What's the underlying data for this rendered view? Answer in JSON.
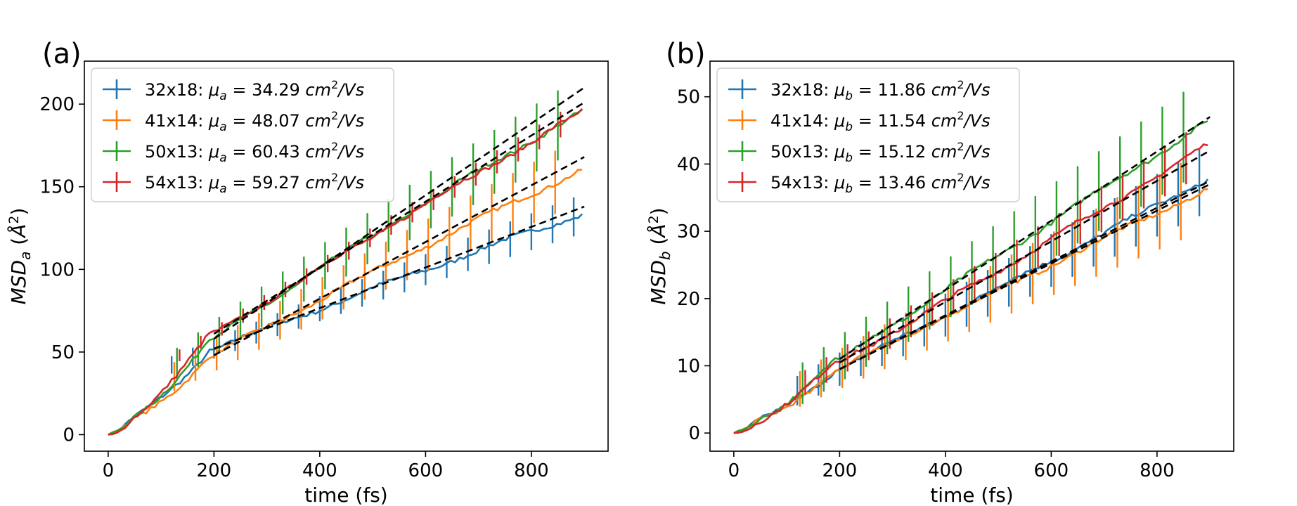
{
  "figure": {
    "panel_a_label": "(a)",
    "panel_b_label": "(b)"
  },
  "chart_data": [
    {
      "type": "line",
      "panel": "(a)",
      "xlabel": "time (fs)",
      "ylabel": "MSD_a (Å²)",
      "ylabel_parts": {
        "main": "MSD",
        "sub": "a",
        "unit_open": " (",
        "unit_sym": "Å",
        "unit_sup": "2",
        "unit_close": ")"
      },
      "xlim": [
        -45,
        945
      ],
      "ylim": [
        -10,
        226
      ],
      "xticks": [
        0,
        200,
        400,
        600,
        800
      ],
      "yticks": [
        0,
        50,
        100,
        150,
        200
      ],
      "grid": false,
      "legend_position": "top-left",
      "fit_window": [
        200,
        900
      ],
      "series": [
        {
          "name": "32x18",
          "label_prefix": "32x18: ",
          "mu_symbol": "μ",
          "mu_sub": "a",
          "mu_text": " = 34.29 ",
          "unit": "cm",
          "unit_sup": "2",
          "unit_rest": "/Vs",
          "color": "#1f77b4",
          "final_value": 134,
          "fit_line": [
            [
              200,
              52
            ],
            [
              900,
              138
            ]
          ],
          "error_half_width": 12
        },
        {
          "name": "41x14",
          "label_prefix": "41x14: ",
          "mu_symbol": "μ",
          "mu_sub": "a",
          "mu_text": " = 48.07 ",
          "unit": "cm",
          "unit_sup": "2",
          "unit_rest": "/Vs",
          "color": "#ff7f0e",
          "final_value": 161,
          "fit_line": [
            [
              200,
              48
            ],
            [
              900,
              168
            ]
          ],
          "error_half_width": 20
        },
        {
          "name": "50x13",
          "label_prefix": "50x13: ",
          "mu_symbol": "μ",
          "mu_sub": "a",
          "mu_text": " = 60.43 ",
          "unit": "cm",
          "unit_sup": "2",
          "unit_rest": "/Vs",
          "color": "#2ca02c",
          "final_value": 196,
          "fit_line": [
            [
              200,
              58
            ],
            [
              900,
              210
            ]
          ],
          "error_half_width": 22
        },
        {
          "name": "54x13",
          "label_prefix": "54x13: ",
          "mu_symbol": "μ",
          "mu_sub": "a",
          "mu_text": " = 59.27 ",
          "unit": "cm",
          "unit_sup": "2",
          "unit_rest": "/Vs",
          "color": "#d62728",
          "final_value": 196,
          "fit_line": [
            [
              200,
              61
            ],
            [
              900,
              201
            ]
          ],
          "error_half_width": 8
        }
      ],
      "fit_line_style": "black dashed"
    },
    {
      "type": "line",
      "panel": "(b)",
      "xlabel": "time (fs)",
      "ylabel": "MSD_b (Å²)",
      "ylabel_parts": {
        "main": "MSD",
        "sub": "b",
        "unit_open": " (",
        "unit_sym": "Å",
        "unit_sup": "2",
        "unit_close": ")"
      },
      "xlim": [
        -45,
        945
      ],
      "ylim": [
        -2.7,
        55.3
      ],
      "xticks": [
        0,
        200,
        400,
        600,
        800
      ],
      "yticks": [
        0,
        10,
        20,
        30,
        40,
        50
      ],
      "grid": false,
      "legend_position": "top-left",
      "fit_window": [
        200,
        900
      ],
      "series": [
        {
          "name": "32x18",
          "label_prefix": "32x18: ",
          "mu_symbol": "μ",
          "mu_sub": "b",
          "mu_text": " = 11.86 ",
          "unit": "cm",
          "unit_sup": "2",
          "unit_rest": "/Vs",
          "color": "#1f77b4",
          "final_value": 38,
          "fit_line": [
            [
              200,
              9.5
            ],
            [
              900,
              37.5
            ]
          ],
          "error_half_width": 5
        },
        {
          "name": "41x14",
          "label_prefix": "41x14: ",
          "mu_symbol": "μ",
          "mu_sub": "b",
          "mu_text": " = 11.54 ",
          "unit": "cm",
          "unit_sup": "2",
          "unit_rest": "/Vs",
          "color": "#ff7f0e",
          "final_value": 36.5,
          "fit_line": [
            [
              200,
              9.5
            ],
            [
              900,
              37
            ]
          ],
          "error_half_width": 6
        },
        {
          "name": "50x13",
          "label_prefix": "50x13: ",
          "mu_symbol": "μ",
          "mu_sub": "b",
          "mu_text": " = 15.12 ",
          "unit": "cm",
          "unit_sup": "2",
          "unit_rest": "/Vs",
          "color": "#2ca02c",
          "final_value": 46.5,
          "fit_line": [
            [
              200,
              11
            ],
            [
              900,
              47
            ]
          ],
          "error_half_width": 7
        },
        {
          "name": "54x13",
          "label_prefix": "54x13: ",
          "mu_symbol": "μ",
          "mu_sub": "b",
          "mu_text": " = 13.46 ",
          "unit": "cm",
          "unit_sup": "2",
          "unit_rest": "/Vs",
          "color": "#d62728",
          "final_value": 43,
          "fit_line": [
            [
              200,
              10.5
            ],
            [
              900,
              42
            ]
          ],
          "error_half_width": 4
        }
      ],
      "fit_line_style": "black dashed"
    }
  ]
}
